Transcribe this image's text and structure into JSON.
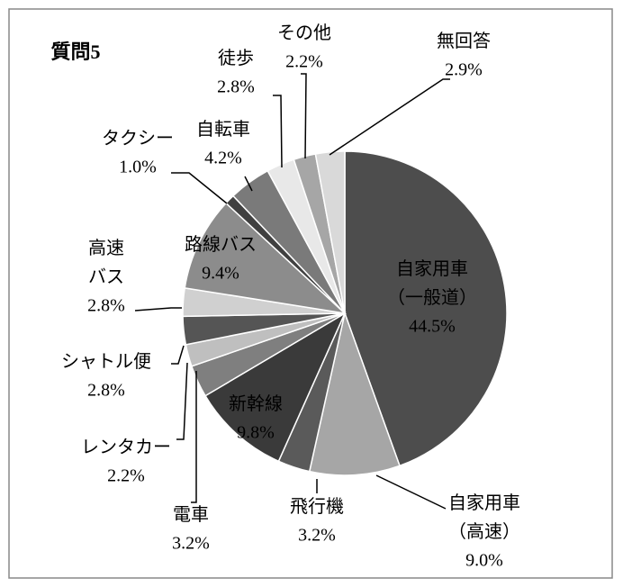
{
  "chart_data": {
    "type": "pie",
    "title": "質問5",
    "categories": [
      "自家用車\n（一般道）",
      "自家用車\n（高速）",
      "飛行機",
      "新幹線",
      "電車",
      "レンタカー",
      "シャトル便",
      "高速\nバス",
      "路線バス",
      "タクシー",
      "自転車",
      "徒歩",
      "その他",
      "無回答"
    ],
    "values": [
      44.5,
      9.0,
      3.2,
      9.8,
      3.2,
      2.2,
      2.8,
      2.8,
      9.4,
      1.0,
      4.2,
      2.8,
      2.2,
      2.9
    ],
    "value_labels": [
      "44.5%",
      "9.0%",
      "3.2%",
      "9.8%",
      "3.2%",
      "2.2%",
      "2.8%",
      "2.8%",
      "9.4%",
      "1.0%",
      "4.2%",
      "2.8%",
      "2.2%",
      "2.9%"
    ],
    "colors": [
      "#4d4d4d",
      "#a6a6a6",
      "#5a5a5a",
      "#3a3a3a",
      "#7f7f7f",
      "#bfbfbf",
      "#555555",
      "#d0d0d0",
      "#8c8c8c",
      "#404040",
      "#7a7a7a",
      "#e8e8e8",
      "#a6a6a6",
      "#d9d9d9"
    ]
  }
}
